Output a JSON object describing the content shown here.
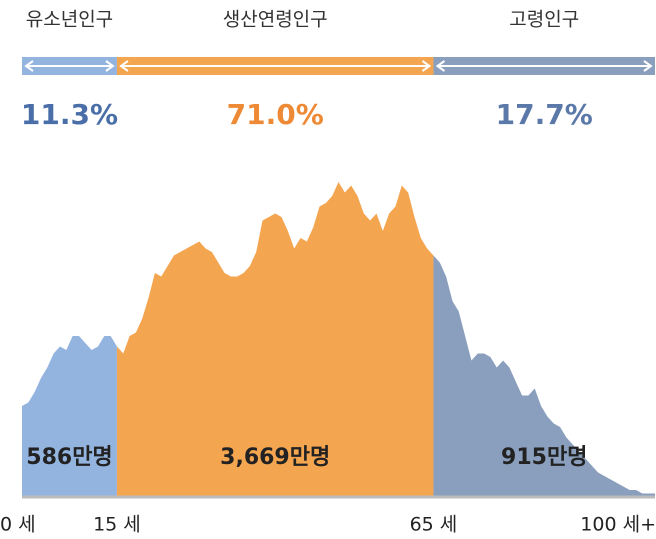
{
  "chart_data": {
    "type": "area",
    "x": [
      0,
      1,
      2,
      3,
      4,
      5,
      6,
      7,
      8,
      9,
      10,
      11,
      12,
      13,
      14,
      15,
      16,
      17,
      18,
      19,
      20,
      21,
      22,
      23,
      24,
      25,
      26,
      27,
      28,
      29,
      30,
      31,
      32,
      33,
      34,
      35,
      36,
      37,
      38,
      39,
      40,
      41,
      42,
      43,
      44,
      45,
      46,
      47,
      48,
      49,
      50,
      51,
      52,
      53,
      54,
      55,
      56,
      57,
      58,
      59,
      60,
      61,
      62,
      63,
      64,
      65,
      66,
      67,
      68,
      69,
      70,
      71,
      72,
      73,
      74,
      75,
      76,
      77,
      78,
      79,
      80,
      81,
      82,
      83,
      84,
      85,
      86,
      87,
      88,
      89,
      90,
      91,
      92,
      93,
      94,
      95,
      96,
      97,
      98,
      99,
      100
    ],
    "values": [
      26,
      27,
      30,
      34,
      37,
      41,
      43,
      42,
      46,
      46,
      44,
      42,
      43,
      46,
      46,
      43,
      41,
      46,
      47,
      51,
      57,
      64,
      63,
      66,
      69,
      70,
      71,
      72,
      73,
      71,
      70,
      67,
      64,
      63,
      63,
      64,
      66,
      70,
      79,
      80,
      81,
      80,
      76,
      71,
      74,
      73,
      77,
      83,
      84,
      86,
      90,
      87,
      89,
      86,
      81,
      79,
      81,
      76,
      81,
      83,
      89,
      87,
      80,
      74,
      71,
      69,
      67,
      63,
      56,
      53,
      46,
      39,
      41,
      41,
      40,
      37,
      39,
      37,
      33,
      29,
      29,
      31,
      26,
      23,
      21,
      20,
      17,
      15,
      13,
      11,
      9,
      7,
      6,
      5,
      4,
      3,
      2,
      2,
      1,
      1,
      1
    ],
    "xlim": [
      0,
      100
    ],
    "xticks": [
      {
        "value": 0,
        "label": "0 세"
      },
      {
        "value": 15,
        "label": "15 세"
      },
      {
        "value": 65,
        "label": "65 세"
      },
      {
        "value": 100,
        "label": "100 세+"
      }
    ],
    "groups": [
      {
        "name": "유소년인구",
        "color": "#94b4e0",
        "text_color": "#4a6fa8",
        "range": [
          0,
          15
        ],
        "share": 11.3,
        "share_label": "11.3%",
        "total": 586,
        "total_label": "586만명"
      },
      {
        "name": "생산연령인구",
        "color": "#f4a550",
        "text_color": "#ee8a35",
        "range": [
          15,
          65
        ],
        "share": 71.0,
        "share_label": "71.0%",
        "total": 3669,
        "total_label": "3,669만명"
      },
      {
        "name": "고령인구",
        "color": "#8a9fbe",
        "text_color": "#5a78a8",
        "range": [
          65,
          100
        ],
        "share": 17.7,
        "share_label": "17.7%",
        "total": 915,
        "total_label": "915만명"
      }
    ]
  }
}
